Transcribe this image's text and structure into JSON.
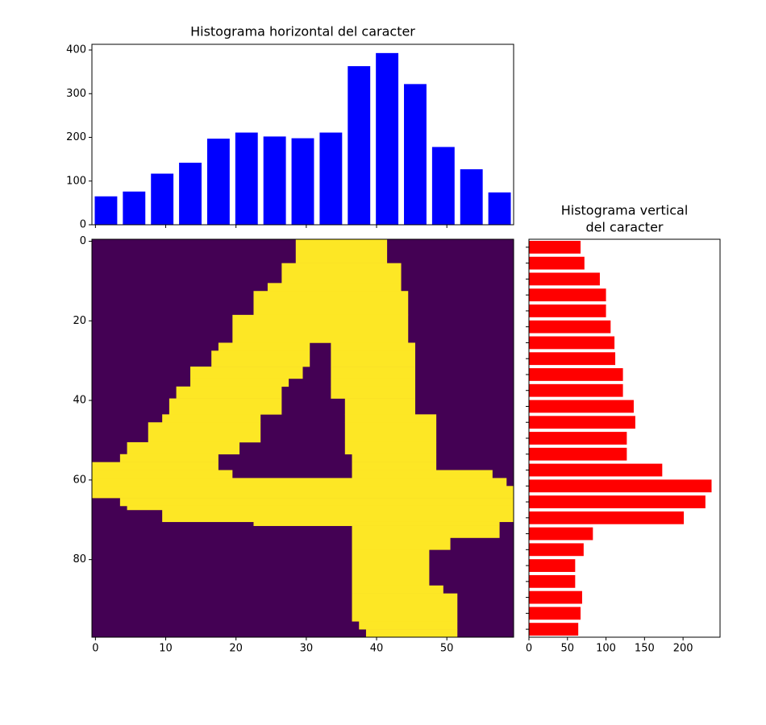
{
  "chart_data": [
    {
      "type": "bar",
      "title": "Histograma horizontal del caracter",
      "color": "#0000ff",
      "x": [
        1.5,
        5.5,
        9.5,
        13.5,
        17.5,
        21.5,
        25.5,
        29.5,
        33.5,
        37.5,
        41.5,
        45.5,
        49.5,
        53.5,
        57.5
      ],
      "values": [
        65,
        76,
        117,
        142,
        197,
        211,
        202,
        198,
        211,
        363,
        393,
        322,
        178,
        127,
        74
      ],
      "xlim": [
        -0.5,
        59.5
      ],
      "ylim": [
        0,
        413
      ],
      "yticks": [
        0,
        100,
        200,
        300,
        400
      ]
    },
    {
      "type": "image",
      "background": "#440154",
      "color": "#fde725",
      "xlim": [
        -0.5,
        59.5
      ],
      "ylim": [
        99.5,
        -0.5
      ],
      "xticks": [
        0,
        10,
        20,
        30,
        40,
        50
      ],
      "yticks": [
        0,
        20,
        40,
        60,
        80
      ],
      "bands": [
        {
          "rows": [
            0,
            6
          ],
          "runs": [
            [
              29,
              42
            ]
          ]
        },
        {
          "rows": [
            6,
            11
          ],
          "runs": [
            [
              27,
              44
            ]
          ]
        },
        {
          "rows": [
            11,
            13
          ],
          "runs": [
            [
              25,
              44
            ]
          ]
        },
        {
          "rows": [
            13,
            19
          ],
          "runs": [
            [
              23,
              45
            ]
          ]
        },
        {
          "rows": [
            19,
            26
          ],
          "runs": [
            [
              20,
              45
            ]
          ]
        },
        {
          "rows": [
            26,
            28
          ],
          "runs": [
            [
              18,
              31
            ],
            [
              34,
              46
            ]
          ]
        },
        {
          "rows": [
            28,
            32
          ],
          "runs": [
            [
              17,
              31
            ],
            [
              34,
              46
            ]
          ]
        },
        {
          "rows": [
            32,
            35
          ],
          "runs": [
            [
              14,
              30
            ],
            [
              34,
              46
            ]
          ]
        },
        {
          "rows": [
            35,
            37
          ],
          "runs": [
            [
              14,
              28
            ],
            [
              34,
              46
            ]
          ]
        },
        {
          "rows": [
            37,
            40
          ],
          "runs": [
            [
              12,
              27
            ],
            [
              34,
              46
            ]
          ]
        },
        {
          "rows": [
            40,
            44
          ],
          "runs": [
            [
              11,
              27
            ],
            [
              36,
              46
            ]
          ]
        },
        {
          "rows": [
            44,
            46
          ],
          "runs": [
            [
              10,
              24
            ],
            [
              36,
              49
            ]
          ]
        },
        {
          "rows": [
            46,
            51
          ],
          "runs": [
            [
              8,
              24
            ],
            [
              36,
              49
            ]
          ]
        },
        {
          "rows": [
            51,
            54
          ],
          "runs": [
            [
              5,
              21
            ],
            [
              36,
              49
            ]
          ]
        },
        {
          "rows": [
            54,
            56
          ],
          "runs": [
            [
              4,
              18
            ],
            [
              37,
              49
            ]
          ]
        },
        {
          "rows": [
            56,
            58
          ],
          "runs": [
            [
              0,
              18
            ],
            [
              37,
              49
            ]
          ]
        },
        {
          "rows": [
            58,
            60
          ],
          "runs": [
            [
              0,
              20
            ],
            [
              37,
              57
            ]
          ]
        },
        {
          "rows": [
            60,
            62
          ],
          "runs": [
            [
              0,
              59
            ]
          ]
        },
        {
          "rows": [
            62,
            65
          ],
          "runs": [
            [
              0,
              60
            ]
          ]
        },
        {
          "rows": [
            65,
            67
          ],
          "runs": [
            [
              4,
              60
            ]
          ]
        },
        {
          "rows": [
            67,
            68
          ],
          "runs": [
            [
              5,
              60
            ]
          ]
        },
        {
          "rows": [
            68,
            71
          ],
          "runs": [
            [
              10,
              60
            ]
          ]
        },
        {
          "rows": [
            71,
            72
          ],
          "runs": [
            [
              23,
              58
            ]
          ]
        },
        {
          "rows": [
            72,
            75
          ],
          "runs": [
            [
              37,
              58
            ]
          ]
        },
        {
          "rows": [
            75,
            78
          ],
          "runs": [
            [
              37,
              51
            ]
          ]
        },
        {
          "rows": [
            78,
            87
          ],
          "runs": [
            [
              37,
              48
            ]
          ]
        },
        {
          "rows": [
            87,
            89
          ],
          "runs": [
            [
              37,
              50
            ]
          ]
        },
        {
          "rows": [
            89,
            96
          ],
          "runs": [
            [
              37,
              52
            ]
          ]
        },
        {
          "rows": [
            96,
            98
          ],
          "runs": [
            [
              38,
              52
            ]
          ]
        },
        {
          "rows": [
            98,
            100
          ],
          "runs": [
            [
              39,
              52
            ]
          ]
        }
      ]
    },
    {
      "type": "barh",
      "title": [
        "Histograma vertical",
        "del caracter"
      ],
      "color": "#ff0000",
      "y": [
        1.5,
        5.5,
        9.5,
        13.5,
        17.5,
        21.5,
        25.5,
        29.5,
        33.5,
        37.5,
        41.5,
        45.5,
        49.5,
        53.5,
        57.5,
        61.5,
        65.5,
        69.5,
        73.5,
        77.5,
        81.5,
        85.5,
        89.5,
        93.5,
        97.5
      ],
      "values": [
        67,
        72,
        92,
        100,
        100,
        106,
        111,
        112,
        122,
        122,
        136,
        138,
        127,
        127,
        173,
        237,
        229,
        201,
        83,
        71,
        60,
        60,
        69,
        67,
        64
      ],
      "ylim": [
        99.5,
        -0.5
      ],
      "xlim": [
        0,
        248
      ],
      "xticks": [
        0,
        50,
        100,
        150,
        200
      ]
    }
  ]
}
